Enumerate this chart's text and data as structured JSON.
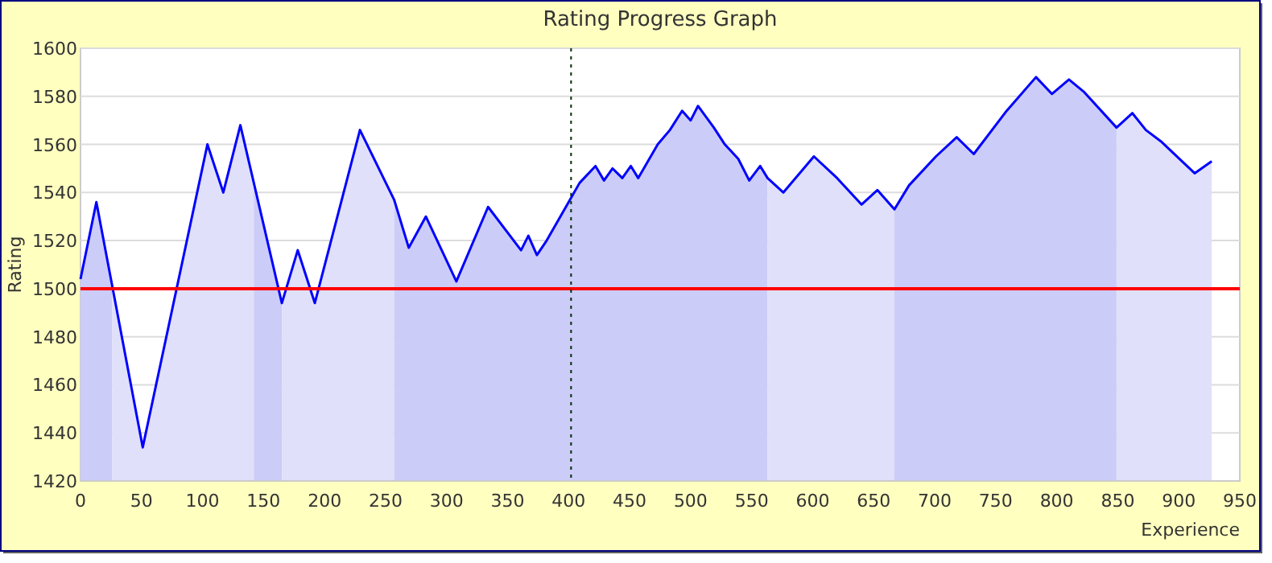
{
  "chart_data": {
    "type": "area",
    "title": "Rating Progress Graph",
    "xlabel": "Experience",
    "ylabel": "Rating",
    "xlim": [
      0,
      950
    ],
    "xticks": [
      0,
      50,
      100,
      150,
      200,
      250,
      300,
      350,
      400,
      450,
      500,
      550,
      600,
      650,
      700,
      750,
      800,
      850,
      900,
      950
    ],
    "ylim": [
      1420,
      1600
    ],
    "yticks": [
      1420,
      1440,
      1460,
      1480,
      1500,
      1520,
      1540,
      1560,
      1580,
      1600
    ],
    "grid": "y",
    "series": [
      {
        "color": "#ccccf8",
        "x": [
          0,
          13,
          26
        ],
        "values": [
          1504,
          1536,
          1501
        ]
      },
      {
        "color": "#e0e0fa",
        "x": [
          26,
          51,
          104,
          117,
          131,
          142
        ],
        "values": [
          1501,
          1434,
          1560,
          1540,
          1568,
          1544
        ]
      },
      {
        "color": "#ccccf8",
        "x": [
          142,
          165
        ],
        "values": [
          1544,
          1494
        ]
      },
      {
        "color": "#e0e0fa",
        "x": [
          165,
          178,
          192,
          229,
          257
        ],
        "values": [
          1494,
          1516,
          1494,
          1566,
          1537
        ]
      },
      {
        "color": "#ccccf8",
        "x": [
          257,
          269,
          283,
          308,
          334,
          361,
          367,
          374,
          382,
          409,
          422,
          429,
          436,
          444,
          451,
          457,
          473,
          483,
          493,
          500,
          506,
          519,
          528,
          539,
          548,
          557,
          563
        ],
        "values": [
          1537,
          1517,
          1530,
          1503,
          1534,
          1516,
          1522,
          1514,
          1520,
          1544,
          1551,
          1545,
          1550,
          1546,
          1551,
          1546,
          1560,
          1566,
          1574,
          1570,
          1576,
          1567,
          1560,
          1554,
          1545,
          1551,
          1546
        ]
      },
      {
        "color": "#e0e0fa",
        "x": [
          563,
          576,
          601,
          620,
          640,
          653,
          667
        ],
        "values": [
          1546,
          1540,
          1555,
          1546,
          1535,
          1541,
          1533
        ]
      },
      {
        "color": "#ccccf8",
        "x": [
          667,
          679,
          701,
          718,
          732,
          759,
          783,
          796,
          810,
          822,
          849
        ],
        "values": [
          1533,
          1543,
          1555,
          1563,
          1556,
          1574,
          1588,
          1581,
          1587,
          1582,
          1567
        ]
      },
      {
        "color": "#e0e0fa",
        "x": [
          849,
          862,
          873,
          886,
          913,
          927
        ],
        "values": [
          1567,
          1573,
          1566,
          1561,
          1548,
          1553
        ]
      },
      {
        "type": "line",
        "color": "#0000ff",
        "x": [
          0,
          13,
          51,
          104,
          117,
          131,
          165,
          178,
          192,
          229,
          257,
          269,
          283,
          308,
          334,
          361,
          367,
          374,
          382,
          409,
          422,
          429,
          436,
          444,
          451,
          457,
          473,
          483,
          493,
          500,
          506,
          519,
          528,
          539,
          548,
          557,
          563,
          576,
          601,
          620,
          640,
          653,
          667,
          679,
          701,
          718,
          732,
          759,
          783,
          796,
          810,
          822,
          849,
          862,
          873,
          886,
          913,
          927
        ],
        "values": [
          1504,
          1536,
          1434,
          1560,
          1540,
          1568,
          1494,
          1516,
          1494,
          1566,
          1537,
          1517,
          1530,
          1503,
          1534,
          1516,
          1522,
          1514,
          1520,
          1544,
          1551,
          1545,
          1550,
          1546,
          1551,
          1546,
          1560,
          1566,
          1574,
          1570,
          1576,
          1567,
          1560,
          1554,
          1545,
          1551,
          1546,
          1540,
          1555,
          1546,
          1535,
          1541,
          1533,
          1543,
          1555,
          1563,
          1556,
          1574,
          1588,
          1581,
          1587,
          1582,
          1567,
          1573,
          1566,
          1561,
          1548,
          1553
        ]
      }
    ],
    "ref_lines": [
      {
        "axis": "y",
        "value": 1500,
        "color": "#ff0000",
        "line_style": "solid"
      },
      {
        "axis": "x",
        "value": 402,
        "color": "#003000",
        "line_style": "dotted"
      }
    ]
  }
}
